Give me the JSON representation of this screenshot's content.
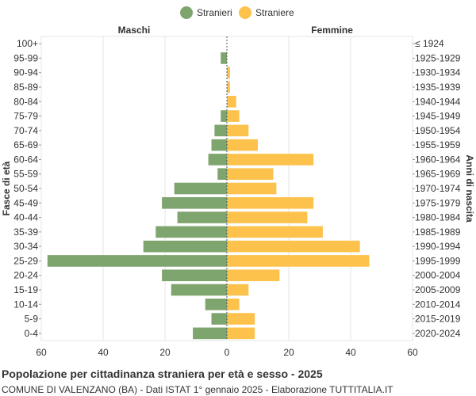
{
  "chart_data": {
    "type": "bar",
    "orientation": "horizontal-population-pyramid",
    "title": "Popolazione per cittadinanza straniera per età e sesso - 2025",
    "subtitle": "COMUNE DI VALENZANO (BA) - Dati ISTAT 1° gennaio 2025 - Elaborazione TUTTITALIA.IT",
    "left_header": "Maschi",
    "right_header": "Femmine",
    "ylabel_left": "Fasce di età",
    "ylabel_right": "Anni di nascita",
    "categories": [
      "100+",
      "95-99",
      "90-94",
      "85-89",
      "80-84",
      "75-79",
      "70-74",
      "65-69",
      "60-64",
      "55-59",
      "50-54",
      "45-49",
      "40-44",
      "35-39",
      "30-34",
      "25-29",
      "20-24",
      "15-19",
      "10-14",
      "5-9",
      "0-4"
    ],
    "birth_years": [
      "≤ 1924",
      "1925-1929",
      "1930-1934",
      "1935-1939",
      "1940-1944",
      "1945-1949",
      "1950-1954",
      "1955-1959",
      "1960-1964",
      "1965-1969",
      "1970-1974",
      "1975-1979",
      "1980-1984",
      "1985-1989",
      "1990-1994",
      "1995-1999",
      "2000-2004",
      "2005-2009",
      "2010-2014",
      "2015-2019",
      "2020-2024"
    ],
    "series": [
      {
        "name": "Stranieri",
        "side": "left",
        "color": "#7fa56f",
        "values": [
          0,
          2,
          0,
          0,
          0,
          2,
          4,
          5,
          6,
          3,
          17,
          21,
          16,
          23,
          27,
          58,
          21,
          18,
          7,
          5,
          11
        ]
      },
      {
        "name": "Straniere",
        "side": "right",
        "color": "#fdc24c",
        "values": [
          0,
          0,
          1,
          1,
          3,
          4,
          7,
          10,
          28,
          15,
          16,
          28,
          26,
          31,
          43,
          46,
          17,
          7,
          4,
          9,
          9
        ]
      }
    ],
    "x_ticks_left": [
      "60",
      "40",
      "20"
    ],
    "x_ticks_right": [
      "0",
      "20",
      "40",
      "60"
    ],
    "xlim": [
      -60,
      60
    ],
    "grid": true,
    "legend_position": "top-center"
  }
}
